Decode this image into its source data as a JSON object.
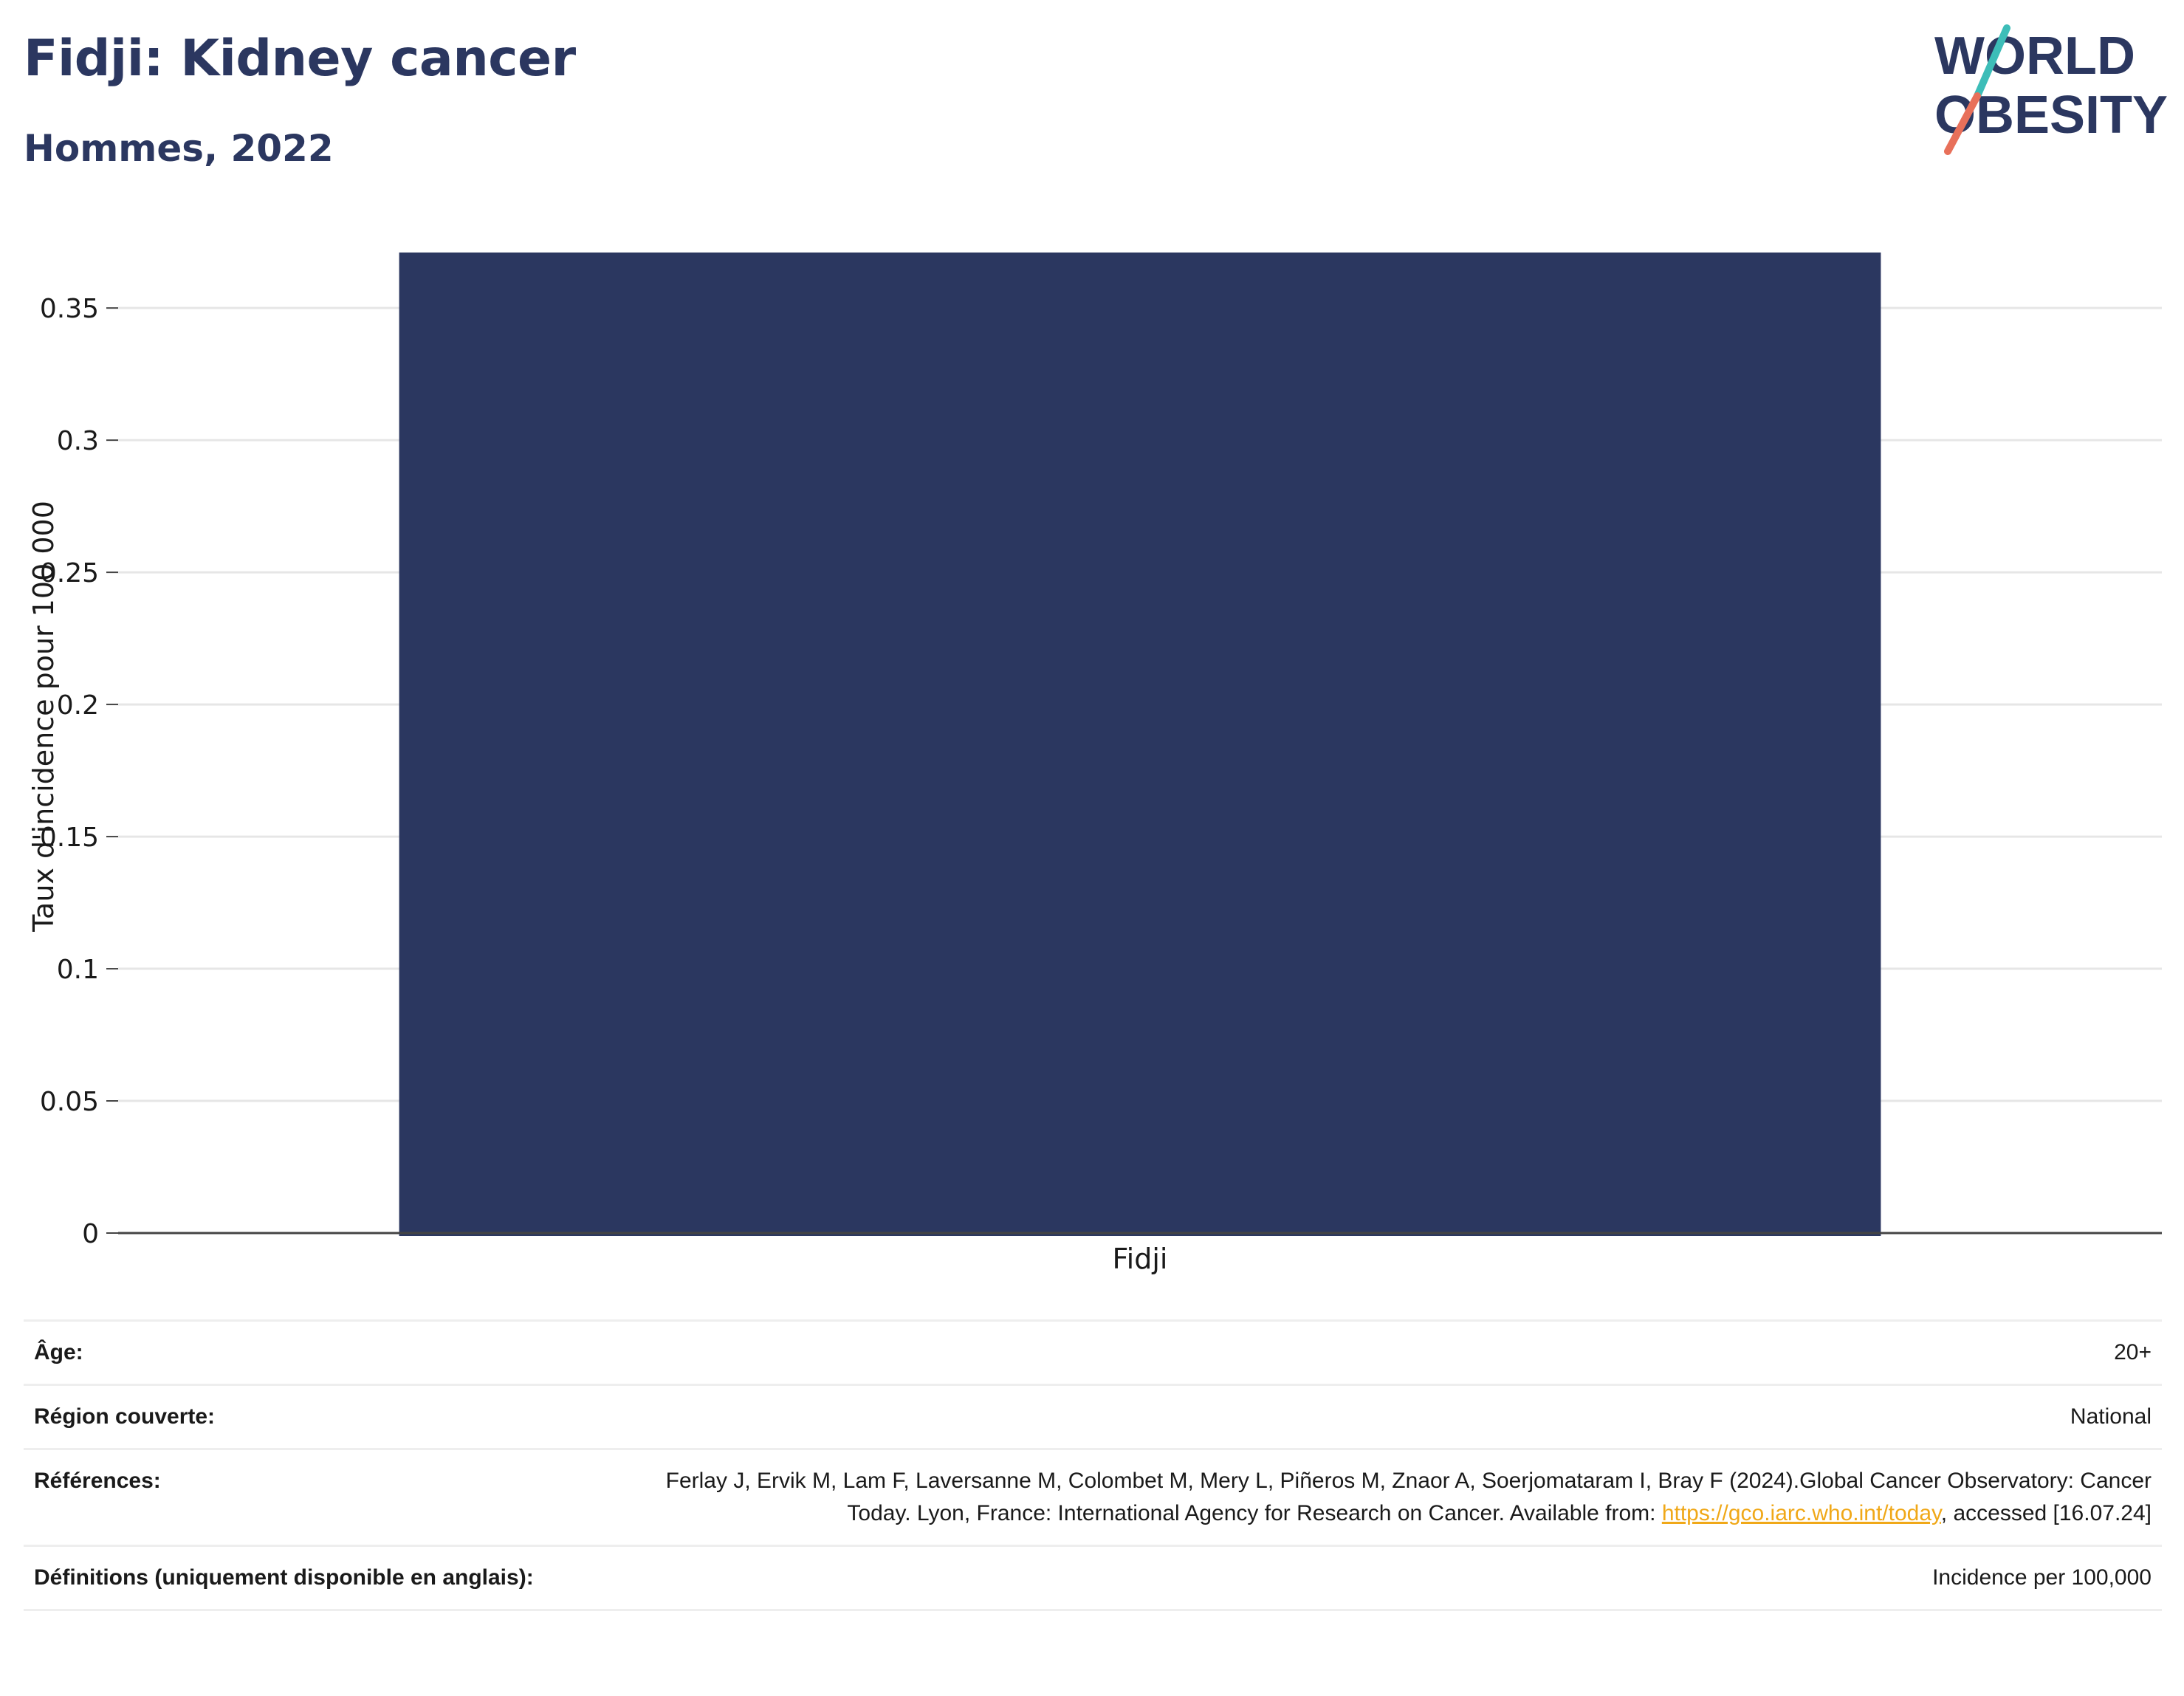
{
  "header": {
    "title": "Fidji: Kidney cancer",
    "subtitle": "Hommes, 2022"
  },
  "logo": {
    "line1": "WORLD",
    "line2": "OBESITY",
    "colors": {
      "text": "#2b3760",
      "slash_top": "#3dbdb8",
      "slash_bottom": "#e8705a"
    }
  },
  "chart_data": {
    "type": "bar",
    "categories": [
      "Fidji"
    ],
    "values": [
      0.371
    ],
    "ylabel": "Taux d'incidence pour 100 000",
    "xlabel": "",
    "ylim": [
      0,
      0.371
    ],
    "yticks": [
      0,
      0.05,
      0.1,
      0.15,
      0.2,
      0.25,
      0.3,
      0.35
    ],
    "ytick_labels": [
      "0",
      "0.05",
      "0.1",
      "0.15",
      "0.2",
      "0.25",
      "0.3",
      "0.35"
    ],
    "grid": true,
    "bar_color": "#2b3760"
  },
  "meta": {
    "age_label": "Âge:",
    "age_value": "20+",
    "region_label": "Région couverte:",
    "region_value": "National",
    "references_label": "Références:",
    "references_text_1": "Ferlay J, Ervik M, Lam F, Laversanne M, Colombet M, Mery L, Piñeros M, Znaor A, Soerjomataram I, Bray F (2024).Global Cancer Observatory: Cancer Today. Lyon, France: International Agency for Research on Cancer. Available from: ",
    "references_link": "https://gco.iarc.who.int/today",
    "references_text_2": ", accessed [16.07.24]",
    "definitions_label": "Définitions (uniquement disponible en anglais):",
    "definitions_value": "Incidence per 100,000"
  }
}
